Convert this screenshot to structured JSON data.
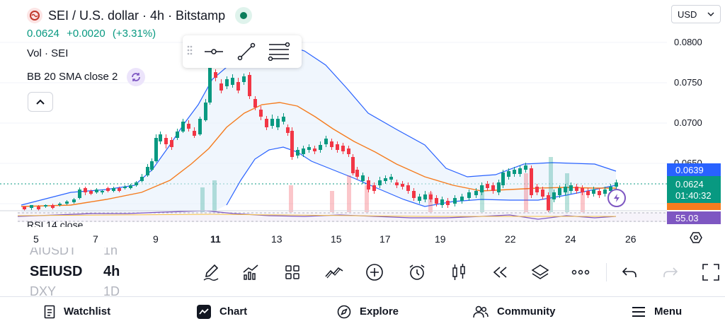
{
  "header": {
    "title": "SEI / U.S. dollar · 4h · Bitstamp",
    "price": "0.0624",
    "change": "+0.0020",
    "change_pct": "(+3.31%)",
    "indicator_volume": "Vol · SEI",
    "indicator_bb": "BB 20 SMA close 2",
    "indicator_rsi": "RSI 14 close",
    "currency": "USD"
  },
  "price_scale": {
    "labels": [
      "0.0800",
      "0.0750",
      "0.0700",
      "0.0650"
    ],
    "tag_upper": "0.0639",
    "tag_last": "0.0624",
    "tag_countdown": "01:40:32",
    "tag_rsi": "55.03",
    "color_up": "#089981",
    "color_down": "#f23645",
    "color_bb_basis": "#f57c1f",
    "color_bb_band": "#2962ff",
    "color_rsi": "#7e57c2"
  },
  "x_axis": [
    "5",
    "7",
    "9",
    "11",
    "13",
    "15",
    "17",
    "19",
    "22",
    "24",
    "26"
  ],
  "bottom": {
    "symbol_prev": "AIUSDT",
    "interval_prev": "1h",
    "symbol": "SEIUSD",
    "interval": "4h",
    "symbol_next": "DXY",
    "interval_next": "1D"
  },
  "toolbar_icons": [
    "pencil-icon",
    "indicators-icon",
    "layout-icon",
    "trend-icon",
    "add-icon",
    "alarm-icon",
    "candles-icon",
    "replay-icon",
    "layers-icon",
    "more-icon",
    "undo-icon",
    "redo-icon",
    "fullscreen-icon"
  ],
  "nav": {
    "watchlist": "Watchlist",
    "chart": "Chart",
    "explore": "Explore",
    "community": "Community",
    "menu": "Menu"
  }
}
